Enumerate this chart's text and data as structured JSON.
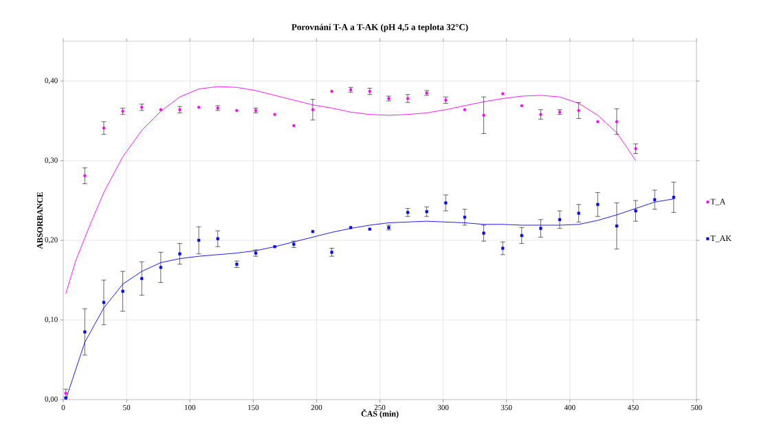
{
  "chart_data": {
    "type": "scatter",
    "title": "Porovnání T-A a T-AK (pH 4,5 a teplota 32°C)",
    "xlabel": "ČAS (min)",
    "ylabel": "ABSORBANCE",
    "xlim": [
      0,
      500
    ],
    "ylim": [
      0,
      0.45
    ],
    "xticks": [
      0,
      50,
      100,
      150,
      200,
      250,
      300,
      350,
      400,
      450,
      500
    ],
    "yticks": [
      {
        "value": 0,
        "label": "0,00"
      },
      {
        "value": 0.1,
        "label": "0,10"
      },
      {
        "value": 0.2,
        "label": "0,20"
      },
      {
        "value": 0.3,
        "label": "0,30"
      },
      {
        "value": 0.4,
        "label": "0,40"
      }
    ],
    "grid": true,
    "legend": "right",
    "series": [
      {
        "name": "T_A",
        "type": "scatter",
        "marker": "circle",
        "color": "#ff00ff",
        "x": [
          2,
          17,
          32,
          47,
          62,
          77,
          92,
          107,
          122,
          137,
          152,
          167,
          182,
          197,
          212,
          227,
          242,
          257,
          272,
          287,
          302,
          317,
          332,
          347,
          362,
          377,
          392,
          407,
          422,
          437,
          452
        ],
        "values": [
          0.008,
          0.281,
          0.341,
          0.362,
          0.367,
          0.364,
          0.364,
          0.367,
          0.366,
          0.363,
          0.363,
          0.358,
          0.344,
          0.364,
          0.387,
          0.389,
          0.387,
          0.378,
          0.378,
          0.385,
          0.376,
          0.364,
          0.357,
          0.384,
          0.369,
          0.358,
          0.361,
          0.363,
          0.349,
          0.349,
          0.315
        ],
        "errors": [
          0.005,
          0.01,
          0.008,
          0.004,
          0.004,
          null,
          0.004,
          null,
          0.003,
          null,
          0.003,
          null,
          null,
          0.013,
          null,
          0.003,
          0.004,
          0.003,
          0.005,
          0.003,
          0.004,
          null,
          0.023,
          null,
          null,
          0.006,
          0.003,
          0.01,
          null,
          0.016,
          0.006
        ]
      },
      {
        "name": "T_AK",
        "type": "scatter",
        "marker": "square",
        "color": "#0000ff",
        "x": [
          2,
          17,
          32,
          47,
          62,
          77,
          92,
          107,
          122,
          137,
          152,
          167,
          182,
          197,
          212,
          227,
          242,
          257,
          272,
          287,
          302,
          317,
          332,
          347,
          362,
          377,
          392,
          407,
          422,
          437,
          452,
          467,
          482
        ],
        "values": [
          0.002,
          0.085,
          0.122,
          0.136,
          0.152,
          0.166,
          0.183,
          0.2,
          0.202,
          0.17,
          0.184,
          0.192,
          0.195,
          0.211,
          0.185,
          0.216,
          0.214,
          0.216,
          0.235,
          0.236,
          0.247,
          0.229,
          0.209,
          0.19,
          0.206,
          0.215,
          0.226,
          0.234,
          0.245,
          0.218,
          0.237,
          0.251,
          0.254
        ],
        "errors": [
          null,
          0.029,
          0.028,
          0.025,
          0.021,
          0.019,
          0.013,
          0.017,
          0.01,
          0.004,
          0.004,
          null,
          0.004,
          null,
          0.005,
          null,
          null,
          0.003,
          0.005,
          0.006,
          0.01,
          0.01,
          0.01,
          0.008,
          0.01,
          0.011,
          0.011,
          0.011,
          0.015,
          0.029,
          0.013,
          0.012,
          0.019
        ]
      },
      {
        "type": "line",
        "marker": "none",
        "color": "#ff00ff",
        "x": [
          2,
          10,
          20,
          32,
          47,
          62,
          77,
          92,
          107,
          122,
          137,
          152,
          167,
          182,
          197,
          212,
          227,
          242,
          257,
          272,
          287,
          302,
          317,
          332,
          347,
          362,
          377,
          392,
          407,
          422,
          437,
          447,
          452
        ],
        "values": [
          0.133,
          0.175,
          0.215,
          0.26,
          0.305,
          0.338,
          0.362,
          0.38,
          0.39,
          0.393,
          0.392,
          0.388,
          0.382,
          0.376,
          0.37,
          0.366,
          0.361,
          0.358,
          0.357,
          0.358,
          0.36,
          0.364,
          0.369,
          0.374,
          0.378,
          0.381,
          0.382,
          0.38,
          0.372,
          0.357,
          0.335,
          0.312,
          0.3
        ]
      },
      {
        "type": "line",
        "marker": "none",
        "color": "#0000ff",
        "x": [
          2,
          17,
          32,
          47,
          62,
          77,
          92,
          107,
          122,
          137,
          152,
          167,
          182,
          197,
          212,
          227,
          242,
          257,
          272,
          287,
          302,
          317,
          332,
          347,
          362,
          377,
          392,
          407,
          422,
          437,
          452,
          467,
          482
        ],
        "values": [
          0.0,
          0.072,
          0.115,
          0.145,
          0.161,
          0.172,
          0.177,
          0.18,
          0.182,
          0.184,
          0.187,
          0.192,
          0.198,
          0.204,
          0.21,
          0.215,
          0.219,
          0.222,
          0.223,
          0.224,
          0.223,
          0.222,
          0.22,
          0.22,
          0.219,
          0.219,
          0.219,
          0.22,
          0.225,
          0.232,
          0.24,
          0.248,
          0.252
        ]
      }
    ]
  }
}
